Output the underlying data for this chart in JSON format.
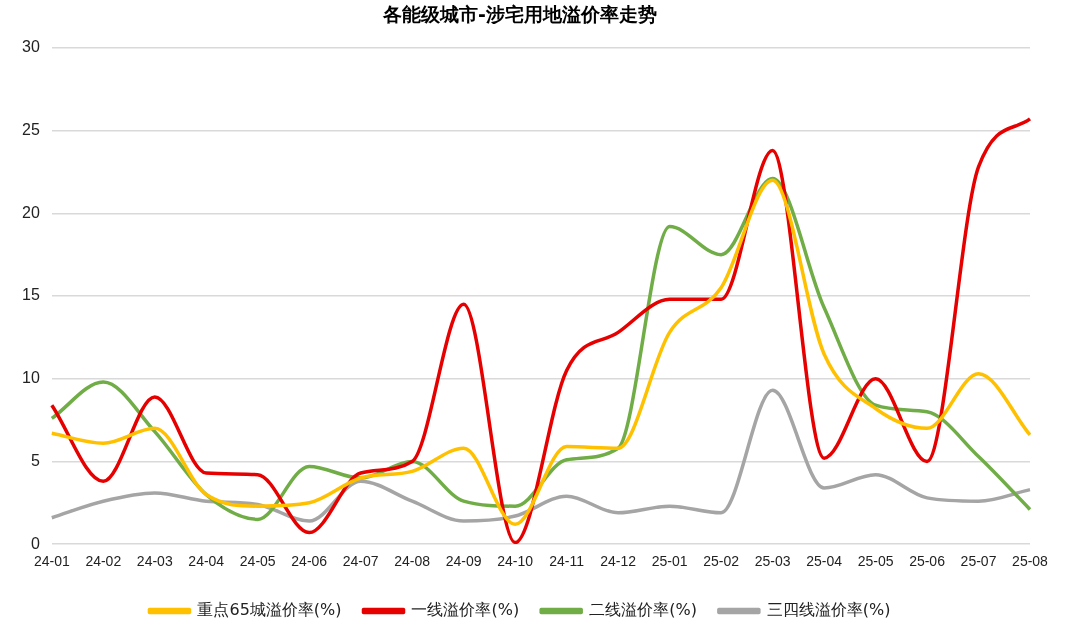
{
  "chart_data": {
    "type": "line",
    "title": "各能级城市-涉宅用地溢价率走势",
    "categories": [
      "24-01",
      "24-02",
      "24-03",
      "24-04",
      "24-05",
      "24-06",
      "24-07",
      "24-08",
      "24-09",
      "24-10",
      "24-11",
      "24-12",
      "25-01",
      "25-02",
      "25-03",
      "25-04",
      "25-05",
      "25-06",
      "25-07",
      "25-08"
    ],
    "series": [
      {
        "name": "重点65城溢价率(%)",
        "color": "#ffc000",
        "values": [
          6.7,
          6.1,
          7.0,
          3.0,
          2.3,
          2.5,
          4.0,
          4.4,
          5.8,
          1.2,
          5.9,
          5.8,
          12.8,
          15.5,
          22.0,
          11.5,
          8.2,
          7.0,
          10.3,
          6.6
        ]
      },
      {
        "name": "一线溢价率(%)",
        "color": "#e60000",
        "values": [
          8.4,
          3.8,
          8.9,
          4.3,
          4.2,
          0.7,
          4.3,
          5.0,
          14.5,
          0.1,
          10.5,
          12.8,
          14.8,
          14.8,
          23.8,
          5.2,
          10.0,
          5.0,
          22.8,
          25.7
        ]
      },
      {
        "name": "二线溢价率(%)",
        "color": "#70ad47",
        "values": [
          7.6,
          9.8,
          6.8,
          3.0,
          1.5,
          4.7,
          4.0,
          5.0,
          2.6,
          2.3,
          5.1,
          5.8,
          19.2,
          17.5,
          22.1,
          14.3,
          8.4,
          8.0,
          5.3,
          2.1
        ]
      },
      {
        "name": "三四线溢价率(%)",
        "color": "#a5a5a5",
        "values": [
          1.6,
          2.6,
          3.1,
          2.6,
          2.4,
          1.4,
          3.8,
          2.6,
          1.4,
          1.7,
          2.9,
          1.9,
          2.3,
          1.9,
          9.3,
          3.4,
          4.2,
          2.8,
          2.6,
          3.3
        ]
      }
    ],
    "ylim": [
      0,
      30
    ],
    "yticks": [
      0,
      5,
      10,
      15,
      20,
      25,
      30
    ],
    "grid": "y",
    "legend": "bottom",
    "marker": "none",
    "line_style": "solid"
  }
}
